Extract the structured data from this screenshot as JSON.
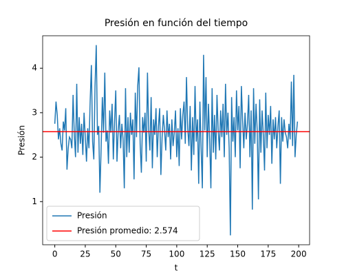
{
  "chart_data": {
    "type": "line",
    "title": "Presión en función del tiempo",
    "xlabel": "t",
    "ylabel": "Presión",
    "series": [
      {
        "name": "Presión",
        "color": "#1f77b4",
        "values": [
          2.75,
          3.25,
          2.95,
          2.4,
          2.65,
          2.3,
          2.15,
          2.8,
          2.6,
          3.1,
          1.72,
          2.2,
          2.45,
          2.4,
          2.2,
          3.4,
          2.5,
          2.0,
          3.65,
          2.1,
          2.9,
          2.3,
          2.75,
          2.05,
          3.0,
          2.45,
          1.9,
          2.65,
          2.2,
          3.25,
          4.07,
          2.35,
          1.95,
          3.6,
          4.52,
          2.5,
          2.7,
          1.2,
          2.2,
          3.35,
          2.55,
          3.9,
          2.35,
          2.6,
          1.85,
          3.05,
          2.55,
          3.2,
          1.95,
          2.8,
          3.5,
          1.9,
          2.6,
          2.95,
          2.2,
          2.75,
          2.4,
          1.3,
          3.55,
          2.0,
          2.9,
          2.1,
          3.0,
          2.5,
          2.85,
          1.5,
          3.45,
          2.45,
          3.6,
          4.02,
          2.3,
          1.65,
          2.9,
          2.55,
          3.0,
          1.9,
          3.9,
          2.6,
          2.15,
          3.35,
          1.75,
          2.85,
          2.5,
          3.1,
          2.0,
          2.7,
          3.1,
          1.6,
          2.45,
          2.95,
          2.6,
          2.15,
          3.05,
          2.45,
          2.75,
          1.95,
          2.85,
          2.25,
          2.55,
          3.05,
          2.0,
          2.65,
          1.8,
          3.1,
          2.4,
          2.95,
          3.25,
          2.3,
          3.8,
          2.65,
          2.25,
          3.15,
          1.7,
          2.9,
          2.05,
          3.6,
          2.35,
          2.85,
          1.4,
          3.25,
          2.2,
          1.3,
          4.3,
          2.6,
          3.8,
          2.0,
          3.2,
          2.4,
          1.3,
          3.55,
          2.1,
          2.95,
          1.95,
          3.4,
          2.6,
          2.15,
          3.05,
          2.45,
          3.2,
          2.0,
          3.65,
          2.5,
          3.0,
          2.2,
          0.24,
          3.35,
          2.35,
          2.9,
          2.0,
          3.5,
          2.6,
          3.15,
          1.75,
          3.6,
          2.85,
          2.2,
          3.0,
          2.4,
          2.75,
          3.4,
          2.0,
          3.05,
          0.82,
          3.55,
          2.3,
          3.2,
          2.6,
          1.05,
          3.3,
          2.1,
          3.05,
          2.5,
          1.7,
          3.45,
          2.2,
          2.95,
          2.5,
          3.15,
          1.85,
          2.85,
          2.4,
          2.9,
          2.2,
          2.7,
          3.05,
          1.4,
          2.9,
          2.35,
          2.85,
          2.55,
          2.45,
          2.2,
          2.75,
          2.4,
          3.7,
          2.25,
          3.85,
          2.0,
          2.5,
          2.8
        ]
      }
    ],
    "hline": {
      "name": "Presión promedio: 2.574",
      "value": 2.574,
      "color": "#ff0000"
    },
    "xlim": [
      -9.95,
      208.95
    ],
    "xticks": [
      0,
      25,
      50,
      75,
      100,
      125,
      150,
      175,
      200
    ],
    "ylim": [
      0.03,
      4.73
    ],
    "yticks": [
      1,
      2,
      3,
      4
    ],
    "legend": "lower left"
  }
}
